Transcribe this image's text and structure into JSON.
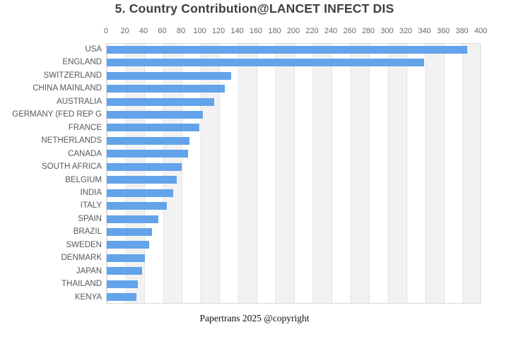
{
  "page": {
    "title": "5. Country Contribution@LANCET INFECT DIS",
    "footer": "Papertrans 2025 @copyright"
  },
  "chart_data": {
    "type": "bar",
    "orientation": "horizontal",
    "title": "5. Country Contribution@LANCET INFECT DIS",
    "categories": [
      "USA",
      "ENGLAND",
      "SWITZERLAND",
      "CHINA MAINLAND",
      "AUSTRALIA",
      "GERMANY (FED REP G",
      "FRANCE",
      "NETHERLANDS",
      "CANADA",
      "SOUTH AFRICA",
      "BELGIUM",
      "INDIA",
      "ITALY",
      "SPAIN",
      "BRAZIL",
      "SWEDEN",
      "DENMARK",
      "JAPAN",
      "THAILAND",
      "KENYA"
    ],
    "values": [
      385,
      339,
      133,
      126,
      115,
      103,
      99,
      88,
      87,
      80,
      75,
      71,
      64,
      55,
      48,
      45,
      41,
      38,
      33,
      32
    ],
    "xlabel": "",
    "ylabel": "",
    "xlim": [
      0,
      400
    ],
    "xticks": [
      0,
      20,
      40,
      60,
      80,
      100,
      120,
      140,
      160,
      180,
      200,
      220,
      240,
      260,
      280,
      300,
      320,
      340,
      360,
      380,
      400
    ],
    "xaxis_position": "top",
    "grid": true,
    "band_fill": "alternating",
    "legend": "none",
    "colors": {
      "bar": "#63a3ea",
      "band": "#f2f2f2",
      "gridline": "#e3e3e3",
      "border": "#d9d9d9",
      "title_text": "#3c4045",
      "tick_text": "#666a6e",
      "label_text": "#54585c"
    }
  }
}
